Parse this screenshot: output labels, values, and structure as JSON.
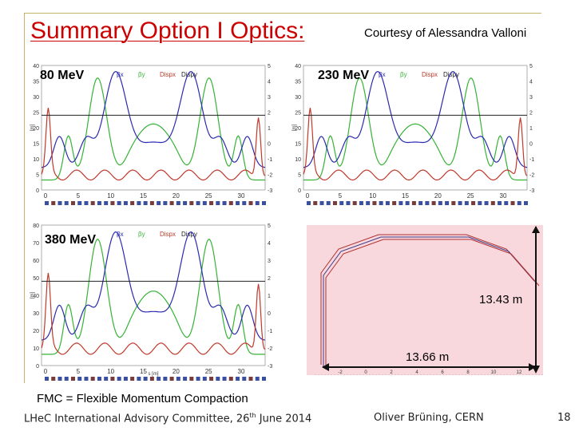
{
  "slide": {
    "title": "Summary Option I Optics:",
    "courtesy": "Courtesy of Alessandra Valloni",
    "fmc_note": "FMC = Flexible Momentum Compaction",
    "footer_left_prefix": "LHeC International Advisory Committee, 26",
    "footer_left_sup": "th",
    "footer_left_suffix": " June 2014",
    "footer_center": "Oliver Brüning, CERN",
    "page_number": "18"
  },
  "colors": {
    "title": "#cc0000",
    "beta_x": "#2b2bb0",
    "beta_y": "#36b336",
    "disp_x": "#c0392b",
    "disp_y": "#222222",
    "dimension_arrow": "#111111"
  },
  "plots": [
    {
      "label": "80 MeV",
      "legend": [
        "βx",
        "βy",
        "Dispx",
        "Dispy"
      ],
      "left_ticks": [
        "40",
        "35",
        "30",
        "25",
        "20",
        "15",
        "10",
        "5",
        "0"
      ],
      "right_ticks": [
        "5",
        "4",
        "3",
        "2",
        "1",
        "0",
        "-1",
        "-2",
        "-3"
      ],
      "bottom_ticks": [
        "0",
        "5",
        "10",
        "15",
        "20",
        "25",
        "30"
      ],
      "ylabel": "[m]"
    },
    {
      "label": "230 MeV",
      "legend": [
        "βx",
        "βy",
        "Dispx",
        "Dispy"
      ],
      "left_ticks": [
        "40",
        "35",
        "30",
        "25",
        "20",
        "15",
        "10",
        "5",
        "0"
      ],
      "right_ticks": [
        "5",
        "4",
        "3",
        "2",
        "1",
        "0",
        "-1",
        "-2",
        "-3"
      ],
      "bottom_ticks": [
        "0",
        "5",
        "10",
        "15",
        "20",
        "25",
        "30"
      ],
      "ylabel": "[m]"
    },
    {
      "label": "380 MeV",
      "legend": [
        "βx",
        "βy",
        "Dispx",
        "Dispy"
      ],
      "left_ticks": [
        "80",
        "70",
        "60",
        "50",
        "40",
        "30",
        "20",
        "10",
        "0"
      ],
      "right_ticks": [
        "5",
        "4",
        "3",
        "2",
        "1",
        "0",
        "-1",
        "-2",
        "-3"
      ],
      "bottom_ticks": [
        "0",
        "5",
        "10",
        "15",
        "20",
        "25",
        "30"
      ],
      "ylabel": "[m]",
      "xlabel": "s [m]"
    }
  ],
  "ring": {
    "height_label": "13.43 m",
    "width_label": "13.66 m",
    "axis_ticks": [
      "-2",
      "0",
      "2",
      "4",
      "6",
      "8",
      "10",
      "12"
    ]
  }
}
